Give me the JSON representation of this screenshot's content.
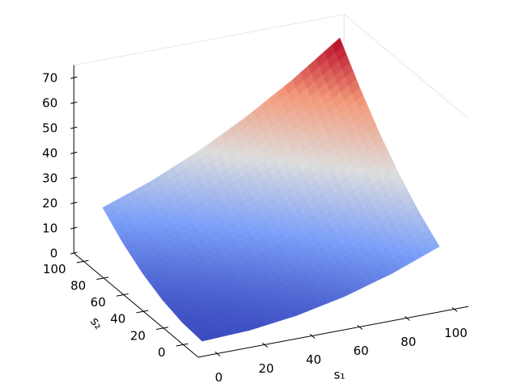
{
  "chart_data": {
    "type": "surface",
    "xlabel": "s₁",
    "ylabel": "s₂",
    "x": [
      0,
      20,
      40,
      60,
      80,
      100
    ],
    "y": [
      0,
      20,
      40,
      60,
      80,
      100
    ],
    "z": [
      [
        0,
        0.8,
        3.2,
        7.2,
        12.8,
        20
      ],
      [
        0.8,
        2.8,
        6.4,
        11.6,
        18.4,
        26.8
      ],
      [
        3.2,
        6.4,
        11.2,
        17.6,
        25.6,
        35.2
      ],
      [
        7.2,
        11.6,
        17.6,
        25.2,
        34.4,
        45.2
      ],
      [
        12.8,
        18.4,
        25.6,
        34.4,
        44.8,
        56.8
      ],
      [
        20,
        26.8,
        35.2,
        45.2,
        56.8,
        70
      ]
    ],
    "colormap": [
      "#3b4cc0",
      "#7b9ff9",
      "#dddddd",
      "#f49a7b",
      "#b40426"
    ],
    "xlim": [
      0,
      100
    ],
    "ylim": [
      0,
      100
    ],
    "zlim": [
      0,
      70
    ],
    "xticks": [
      0,
      20,
      40,
      60,
      80,
      100
    ],
    "yticks": [
      0,
      20,
      40,
      60,
      80,
      100
    ],
    "zticks": [
      0,
      10,
      20,
      30,
      40,
      50,
      60,
      70
    ]
  }
}
